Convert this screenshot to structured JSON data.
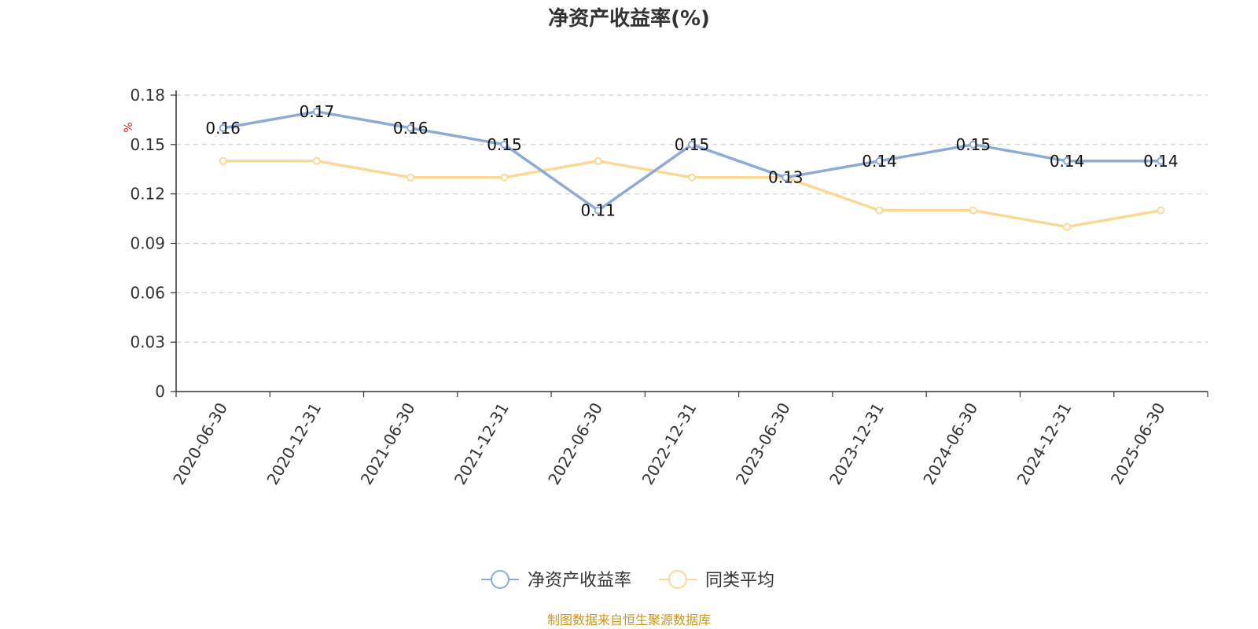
{
  "chart_data": {
    "type": "line",
    "title": "净资产收益率(%)",
    "ylabel": "%",
    "xlabel": "",
    "categories": [
      "2020-06-30",
      "2020-12-31",
      "2021-06-30",
      "2021-12-31",
      "2022-06-30",
      "2022-12-31",
      "2023-06-30",
      "2023-12-31",
      "2024-06-30",
      "2024-12-31",
      "2025-06-30"
    ],
    "series": [
      {
        "name": "净资产收益率",
        "color": "#8eaad6",
        "values": [
          0.16,
          0.17,
          0.16,
          0.15,
          0.11,
          0.15,
          0.13,
          0.14,
          0.15,
          0.14,
          0.14
        ],
        "labels": [
          "0.16",
          "0.17",
          "0.16",
          "0.15",
          "0.11",
          "0.15",
          "0.13",
          "0.14",
          "0.15",
          "0.14",
          "0.14"
        ]
      },
      {
        "name": "同类平均",
        "color": "#fad995",
        "values": [
          0.14,
          0.14,
          0.13,
          0.13,
          0.14,
          0.13,
          0.13,
          0.11,
          0.11,
          0.1,
          0.11
        ]
      }
    ],
    "ylim": [
      0,
      0.18
    ],
    "yticks": [
      "0",
      "0.03",
      "0.06",
      "0.09",
      "0.12",
      "0.15",
      "0.18"
    ],
    "grid": true,
    "legend_position": "bottom",
    "source": "制图数据来自恒生聚源数据库"
  }
}
